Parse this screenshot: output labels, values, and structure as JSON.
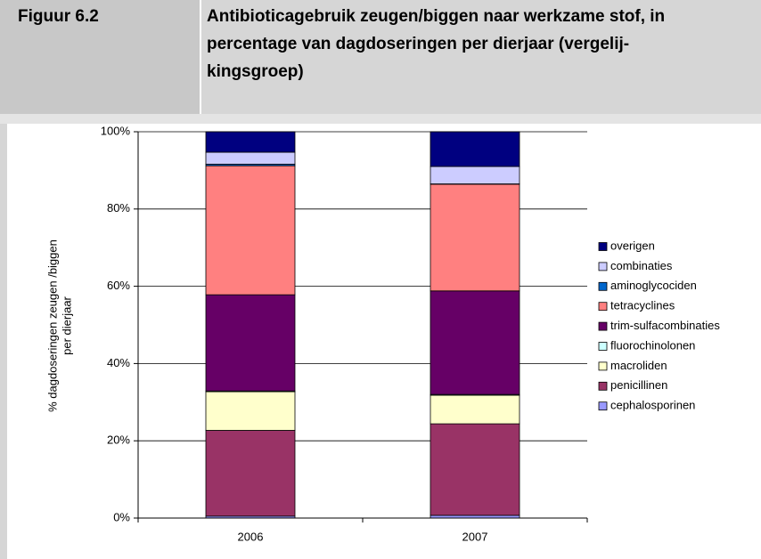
{
  "header": {
    "figure": "Figuur 6.2",
    "title_lines": [
      "Antibioticagebruik zeugen/biggen naar werkzame stof, in",
      "percentage van dagdoseringen per dierjaar (vergelij-",
      "kingsgroep)"
    ]
  },
  "chart_data": {
    "type": "stacked_bar",
    "y_label": [
      "% dagdoseringen zeugen /biggen",
      "per dierjaar"
    ],
    "categories": [
      "2006",
      "2007"
    ],
    "series": [
      {
        "name": "cephalosporinen",
        "color": "#9999ff",
        "values": [
          0.5,
          0.7
        ]
      },
      {
        "name": "penicillinen",
        "color": "#993366",
        "values": [
          22.2,
          23.7
        ]
      },
      {
        "name": "macroliden",
        "color": "#ffffcc",
        "values": [
          10.0,
          7.4
        ]
      },
      {
        "name": "fluorochinolonen",
        "color": "#ccffff",
        "values": [
          0.2,
          0.2
        ]
      },
      {
        "name": "trim-sulfacombinaties",
        "color": "#660066",
        "values": [
          24.9,
          26.8
        ]
      },
      {
        "name": "tetracyclines",
        "color": "#ff8080",
        "values": [
          33.4,
          27.6
        ]
      },
      {
        "name": "aminoglycociden",
        "color": "#0066cc",
        "values": [
          0.4,
          0.1
        ]
      },
      {
        "name": "combinaties",
        "color": "#ccccff",
        "values": [
          3.1,
          4.5
        ]
      },
      {
        "name": "overigen",
        "color": "#000080",
        "values": [
          5.3,
          9.0
        ]
      }
    ],
    "ylim": [
      0,
      100
    ],
    "yticks": [
      {
        "value": 0,
        "label": "0%"
      },
      {
        "value": 20,
        "label": "20%"
      },
      {
        "value": 40,
        "label": "40%"
      },
      {
        "value": 60,
        "label": "60%"
      },
      {
        "value": 80,
        "label": "80%"
      },
      {
        "value": 100,
        "label": "100%"
      }
    ],
    "grid": true,
    "legend": "right"
  }
}
